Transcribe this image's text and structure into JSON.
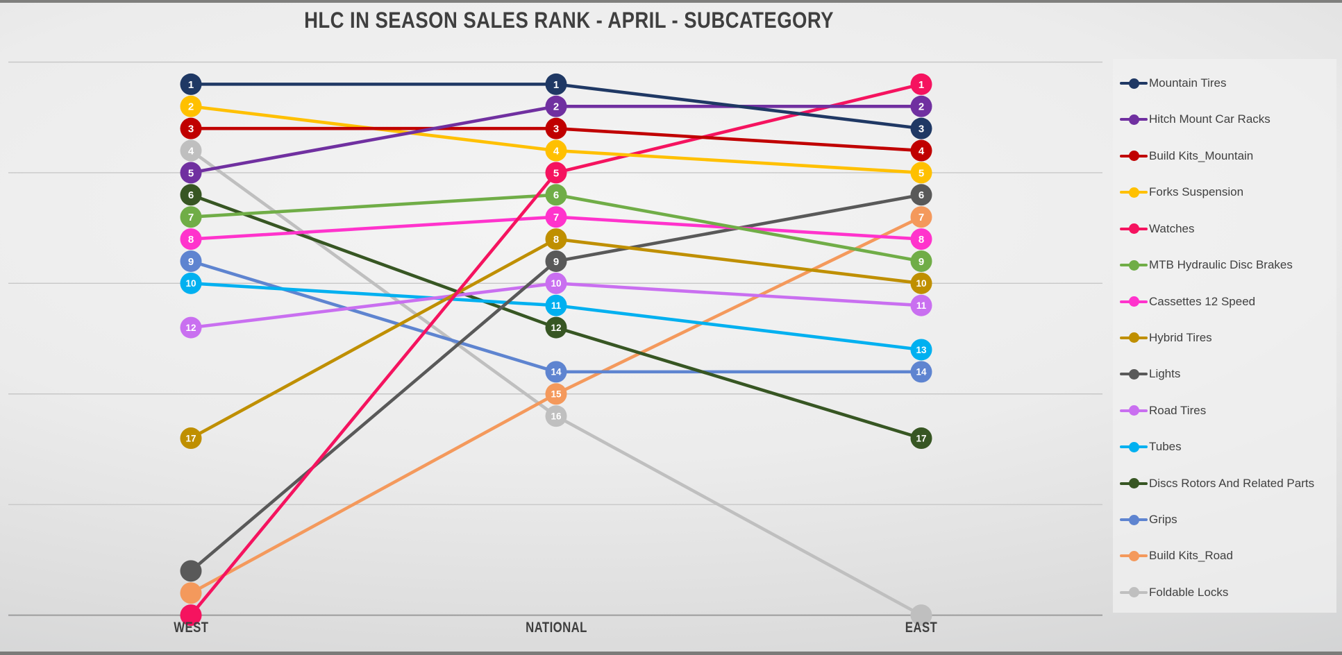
{
  "title": "HLC IN SEASON SALES RANK - APRIL - SUBCATEGORY",
  "style": {
    "title_color": "#3F3F3F",
    "axis_label_color": "#3F3F3F",
    "gridline_color": "#C7C7C7",
    "axis_line_color": "#9C9C9C",
    "marker_label_color": "#FFFFFF",
    "legend_text_color": "#404040"
  },
  "chart_data": {
    "type": "line",
    "subtype": "bump-rank-chart",
    "title": "HLC IN SEASON SALES RANK - APRIL - SUBCATEGORY",
    "categories": [
      "WEST",
      "NATIONAL",
      "EAST"
    ],
    "xlabel": "",
    "ylabel": "",
    "y_axis": {
      "meaning": "sales rank (1 = best, lower position on chart = worse rank)",
      "min": 0,
      "max": 25,
      "inverted": true,
      "gridline_interval": 5,
      "gridlines_visible": true,
      "tick_labels_visible": false
    },
    "legend_position": "right",
    "data_labels": "rank number shown inside each marker",
    "series": [
      {
        "name": "Mountain Tires",
        "color": "#1F3864",
        "values": [
          1,
          1,
          3
        ],
        "hidden_labels": []
      },
      {
        "name": "Hitch Mount Car Racks",
        "color": "#7030A0",
        "values": [
          5,
          2,
          2
        ],
        "hidden_labels": []
      },
      {
        "name": "Build Kits_Mountain",
        "color": "#C00000",
        "values": [
          3,
          3,
          4
        ],
        "hidden_labels": []
      },
      {
        "name": "Forks Suspension",
        "color": "#FFC000",
        "values": [
          2,
          4,
          5
        ],
        "hidden_labels": []
      },
      {
        "name": "Watches",
        "color": "#F5135F",
        "values": [
          25,
          5,
          1
        ],
        "hidden_labels": [
          0
        ]
      },
      {
        "name": "MTB Hydraulic Disc Brakes",
        "color": "#70AD47",
        "values": [
          7,
          6,
          9
        ],
        "hidden_labels": []
      },
      {
        "name": "Cassettes 12 Speed",
        "color": "#FF33CC",
        "values": [
          8,
          7,
          8
        ],
        "hidden_labels": []
      },
      {
        "name": "Hybrid Tires",
        "color": "#BF8F00",
        "values": [
          17,
          8,
          10
        ],
        "hidden_labels": []
      },
      {
        "name": "Lights",
        "color": "#595959",
        "values": [
          23,
          9,
          6
        ],
        "hidden_labels": [
          0
        ]
      },
      {
        "name": "Road Tires",
        "color": "#C96FF0",
        "values": [
          12,
          10,
          11
        ],
        "hidden_labels": []
      },
      {
        "name": "Tubes",
        "color": "#00B0F0",
        "values": [
          10,
          11,
          13
        ],
        "hidden_labels": []
      },
      {
        "name": "Discs Rotors And Related Parts",
        "color": "#375623",
        "values": [
          6,
          12,
          17
        ],
        "hidden_labels": []
      },
      {
        "name": "Grips",
        "color": "#5E84D0",
        "values": [
          9,
          14,
          14
        ],
        "hidden_labels": []
      },
      {
        "name": "Build Kits_Road",
        "color": "#F4995C",
        "values": [
          24,
          15,
          7
        ],
        "hidden_labels": [
          0
        ]
      },
      {
        "name": "Foldable Locks",
        "color": "#BFBFBF",
        "values": [
          4,
          16,
          25
        ],
        "hidden_labels": [
          2
        ]
      }
    ]
  }
}
